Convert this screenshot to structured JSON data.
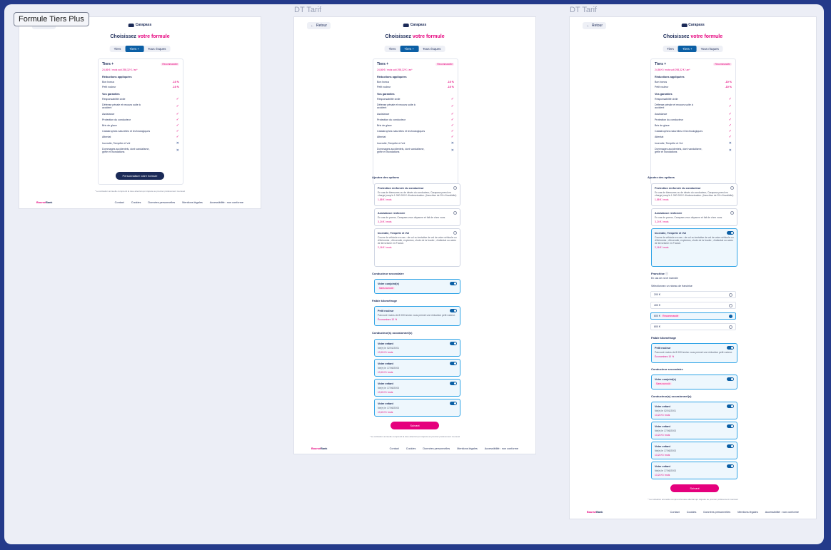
{
  "labels": {
    "frame1": "Formule Tiers Plus",
    "frame2": "DT Tarif",
    "frame3": "DT Tarif"
  },
  "common": {
    "back": "Retour",
    "logo": "Carapass",
    "title_prefix": "Choisissez",
    "title_accent": "votre formule",
    "tabs": [
      "Tiers",
      "Tiers +",
      "Tous risques"
    ],
    "active_tab": 1,
    "card": {
      "name": "Tiers +",
      "badge": "Recommandée",
      "price": "24,86 € / mois soit 298,32 € / an*",
      "reductions_title": "Réductions appliquées",
      "reductions": [
        {
          "label": "Bon bonus",
          "value": "-10 %"
        },
        {
          "label": "Petit rouleur",
          "value": "-10 %"
        }
      ],
      "guarantees_title": "Vos garanties",
      "guarantees": [
        {
          "label": "Responsabilité civile",
          "included": true
        },
        {
          "label": "Défense pénale et recours suite à accident",
          "included": true
        },
        {
          "label": "Assistance",
          "included": true
        },
        {
          "label": "Protection du conducteur",
          "included": true
        },
        {
          "label": "Bris de glace",
          "included": true
        },
        {
          "label": "Catastrophes naturelles et technologiques",
          "included": true
        },
        {
          "label": "Attentat",
          "included": true
        },
        {
          "label": "Incendie, Tempête et Vol",
          "included": false
        },
        {
          "label": "Dommages accidentels, dont vandalisme, grêle et inondations",
          "included": false
        }
      ]
    },
    "cta": "Personnaliser votre formule",
    "footnote": "* La cotisation annuelle comprend la taxe attentat qui s'ajoute au premier prélèvement mensuel",
    "footer": {
      "brand_b": "Boursé",
      "brand_rest": "Bank",
      "links": [
        "Contact",
        "Cookies",
        "Données personnelles",
        "Mentions légales",
        "Accessibilité : non conforme"
      ]
    },
    "options_title": "Ajoutez des options",
    "options": [
      {
        "title": "Protection renforcée du conducteur",
        "desc": "En cas de blessures ou de décès du conducteur, Carapass prend en charge jusqu'à 1 000 000 € d'indemnisation. (franchise de 5% d'invalidité)",
        "price": "1,88 € / mois"
      },
      {
        "title": "Assistance renforcée",
        "desc": "En cas de panne, Carapass vous dépanne et fait de chez vous.",
        "price": "3,24 € / mois"
      },
      {
        "title": "Incendie, Tempête et Vol",
        "desc": "Couvre le véhicule en cas : de vol ou tentative de vol de votre véhicule ou d'éléments ; d'incendie, explosion, chute de la foudre ; d'attentat ou actes de terrorisme en France.",
        "price": "2,16 € / mois"
      }
    ],
    "second_driver_title": "Conducteur secondaire",
    "second_driver": {
      "title": "Votre conjoint(e)",
      "pill": "Sans surcoût"
    },
    "low_mileage_title": "Faible kilométrage",
    "low_mileage": {
      "title": "Petit rouleur",
      "desc": "Parcourir moins de 8 000 km/an vous permet une réduction petit rouleur.",
      "pill": "Économisez 10 %"
    },
    "occasional_title": "Conducteur(s) occasionnel(s)",
    "occasional": [
      {
        "title": "Votre enfant",
        "born": "Né(e) le 02/01/2001",
        "price": "13,24 € / mois"
      },
      {
        "title": "Votre enfant",
        "born": "Né(e) le 17/06/2003",
        "price": "13,24 € / mois"
      },
      {
        "title": "Votre enfant",
        "born": "Né(e) le 17/06/2003",
        "price": "13,24 € / mois"
      },
      {
        "title": "Votre enfant",
        "born": "Né(e) le 17/06/2003",
        "price": "13,24 € / mois"
      }
    ],
    "next": "Suivant",
    "franchise_title": "Franchise",
    "franchise_sub": "En cas de vol et incendie",
    "franchise_select": "Sélectionnez un niveau de franchise",
    "franchise_levels": [
      "200 €",
      "400 €",
      "600 €",
      "800 €"
    ],
    "franchise_selected": 2,
    "franchise_badge": "Recommandé"
  }
}
